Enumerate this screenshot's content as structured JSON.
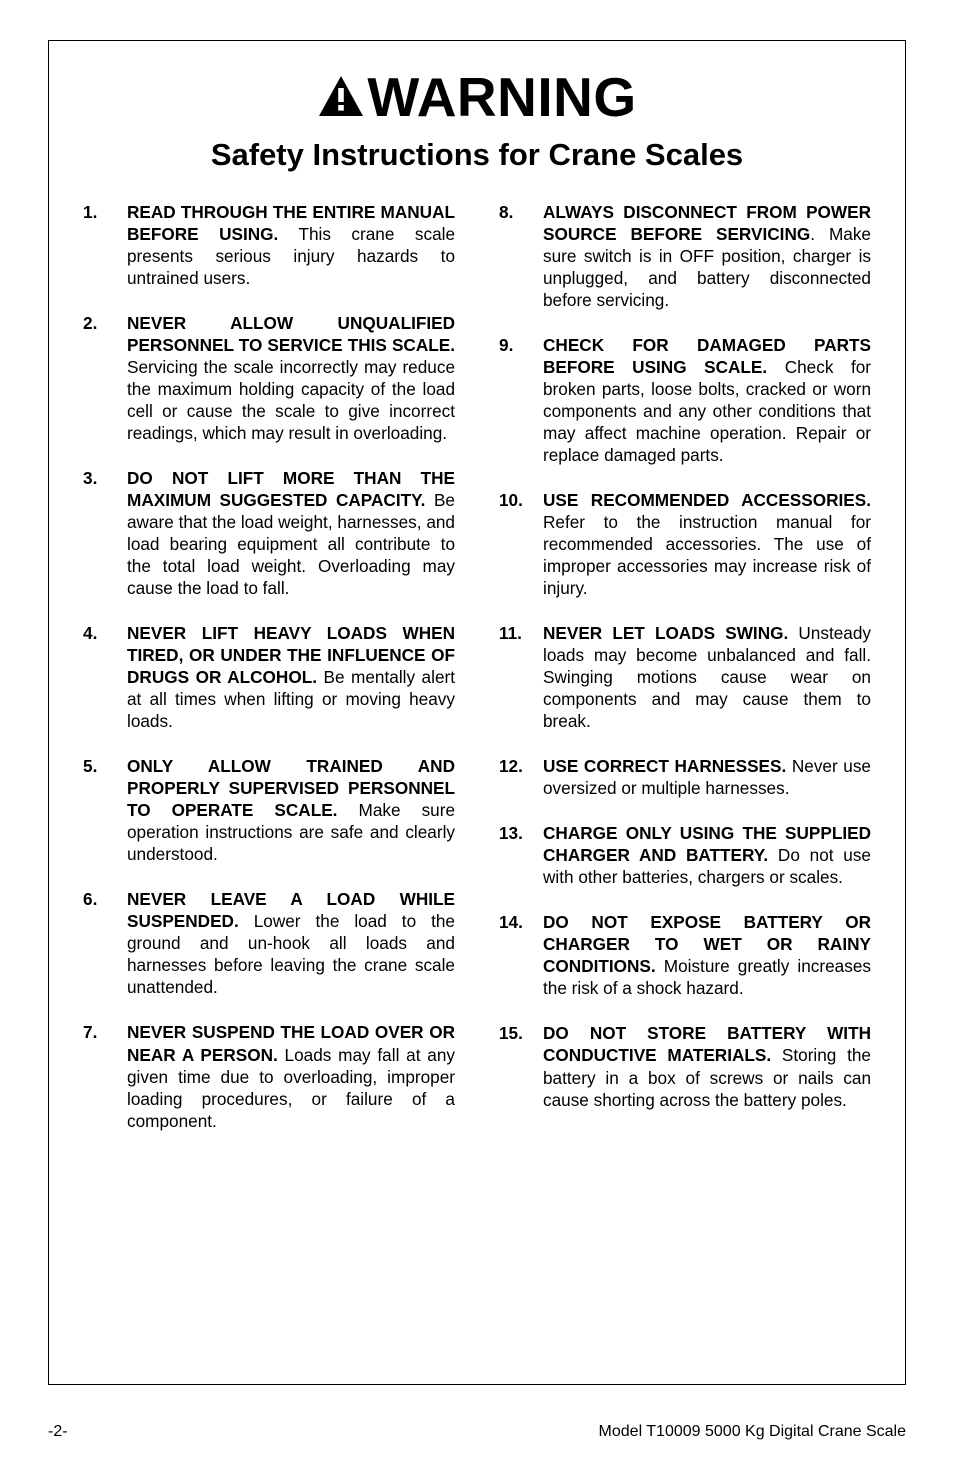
{
  "heading": "WARNING",
  "subheading": "Safety Instructions for Crane Scales",
  "colors": {
    "text": "#000000",
    "background": "#ffffff",
    "border": "#000000"
  },
  "typography": {
    "heading_fontsize": 55,
    "subheading_fontsize": 31,
    "body_fontsize": 17.2,
    "footer_fontsize": 16,
    "line_height": 1.28
  },
  "items_left": [
    {
      "bold": "READ THROUGH THE ENTIRE MANUAL BEFORE USING.",
      "rest": " This crane scale presents serious injury hazards to untrained users."
    },
    {
      "bold": "NEVER ALLOW UNQUALIFIED PERSONNEL TO SERVICE THIS SCALE.",
      "rest": " Servicing the scale incorrectly may reduce the maximum holding capacity of the load cell or cause the scale to give incorrect readings, which may result in overloading."
    },
    {
      "bold": "DO NOT LIFT MORE THAN THE MAXIMUM SUGGESTED CAPACITY.",
      "rest": " Be aware that the load weight, harnesses, and load bearing equipment all contribute to the total load weight. Overloading may cause the load to fall."
    },
    {
      "bold": "NEVER LIFT HEAVY LOADS WHEN TIRED, OR UNDER THE INFLUENCE OF DRUGS OR ALCOHOL.",
      "rest": " Be mentally alert at all times when lifting or moving heavy loads."
    },
    {
      "bold": "ONLY ALLOW TRAINED AND PROPERLY SUPERVISED PERSONNEL TO OPERATE SCALE.",
      "rest": " Make sure operation instructions are safe and clearly understood."
    },
    {
      "bold": "NEVER LEAVE A LOAD WHILE SUSPENDED.",
      "rest": " Lower the load to the ground and un-hook all loads and harnesses before leaving the crane scale unattended."
    },
    {
      "bold": "NEVER SUSPEND THE LOAD OVER OR NEAR A PERSON.",
      "rest": " Loads may fall at any given time due to overloading, improper loading procedures, or failure of a component."
    }
  ],
  "items_right": [
    {
      "bold": "ALWAYS DISCONNECT FROM POWER SOURCE BEFORE SERVICING",
      "rest": ". Make sure switch is in OFF position, charger is unplugged, and battery disconnected before servicing."
    },
    {
      "bold": "CHECK FOR DAMAGED PARTS BEFORE USING SCALE.",
      "rest": " Check for broken parts, loose bolts, cracked or worn components and any other conditions that may affect machine operation. Repair or replace damaged parts."
    },
    {
      "bold": "USE RECOMMENDED ACCESSORIES.",
      "rest": " Refer to the instruction manual for recommended accessories. The use of improper accessories may increase risk of injury."
    },
    {
      "bold": "NEVER LET LOADS SWING.",
      "rest": " Unsteady loads may become unbalanced and fall. Swinging motions cause wear on components and may cause them to break."
    },
    {
      "bold": "USE CORRECT HARNESSES.",
      "rest": " Never use oversized or multiple harnesses."
    },
    {
      "bold": "CHARGE ONLY USING THE SUPPLIED CHARGER AND BATTERY.",
      "rest": " Do not use with other batteries, chargers or scales."
    },
    {
      "bold": "DO NOT EXPOSE BATTERY OR CHARGER TO WET OR RAINY CONDITIONS.",
      "rest": " Moisture greatly increases the risk of a shock hazard."
    },
    {
      "bold": "DO NOT STORE BATTERY WITH CONDUCTIVE MATERIALS.",
      "rest": " Storing the battery in a box of screws or nails can cause shorting across the battery poles."
    }
  ],
  "footer": {
    "left": "-2-",
    "right": "Model T10009  5000 Kg Digital Crane Scale"
  }
}
